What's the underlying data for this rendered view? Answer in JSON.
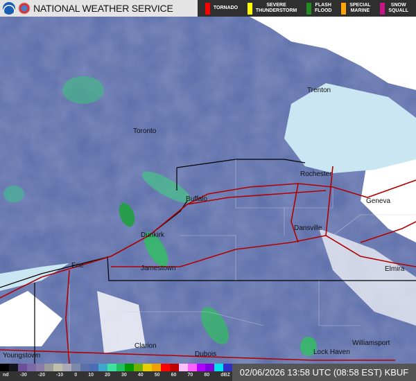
{
  "header": {
    "title": "NATIONAL WEATHER SERVICE",
    "logos": [
      "noaa-logo",
      "nws-logo"
    ]
  },
  "warnings": [
    {
      "label": "TORNADO",
      "color": "#ff0000"
    },
    {
      "label": "SEVERE\nTHUNDERSTORM",
      "color": "#ffff00"
    },
    {
      "label": "FLASH\nFLOOD",
      "color": "#228b22"
    },
    {
      "label": "SPECIAL\nMARINE",
      "color": "#ffa500"
    },
    {
      "label": "SNOW\nSQUALL",
      "color": "#c71585"
    }
  ],
  "cities": [
    {
      "name": "Trenton"
    },
    {
      "name": "Toronto"
    },
    {
      "name": "Rochester"
    },
    {
      "name": "Buffalo"
    },
    {
      "name": "Geneva"
    },
    {
      "name": "Dansville"
    },
    {
      "name": "Dunkirk"
    },
    {
      "name": "Erie"
    },
    {
      "name": "Jamestown"
    },
    {
      "name": "Elmira"
    },
    {
      "name": "Williamsport"
    },
    {
      "name": "Clarion"
    },
    {
      "name": "Dubois"
    },
    {
      "name": "Lock Haven"
    },
    {
      "name": "Youngstown"
    }
  ],
  "legend": {
    "ticks": [
      "nd",
      "-30",
      "-20",
      "-10",
      "0",
      "10",
      "20",
      "30",
      "40",
      "50",
      "60",
      "70",
      "80",
      "dBZ"
    ],
    "colors": [
      "#000000",
      "#15151f",
      "#6b4f99",
      "#7d68a8",
      "#8a7ea8",
      "#9c9c9c",
      "#bfbfa8",
      "#a9a9b8",
      "#7d89a8",
      "#5c70a8",
      "#4c6cb8",
      "#3ea8c8",
      "#40e0a0",
      "#20c060",
      "#009a00",
      "#70b000",
      "#e8d000",
      "#f0a000",
      "#ff0000",
      "#c00000",
      "#ffc0ff",
      "#ff60ff",
      "#b000ff",
      "#8000e0",
      "#00e0f0",
      "#3030c8"
    ]
  },
  "timestamp": "02/06/2026 13:58 UTC (08:58 EST) KBUF"
}
